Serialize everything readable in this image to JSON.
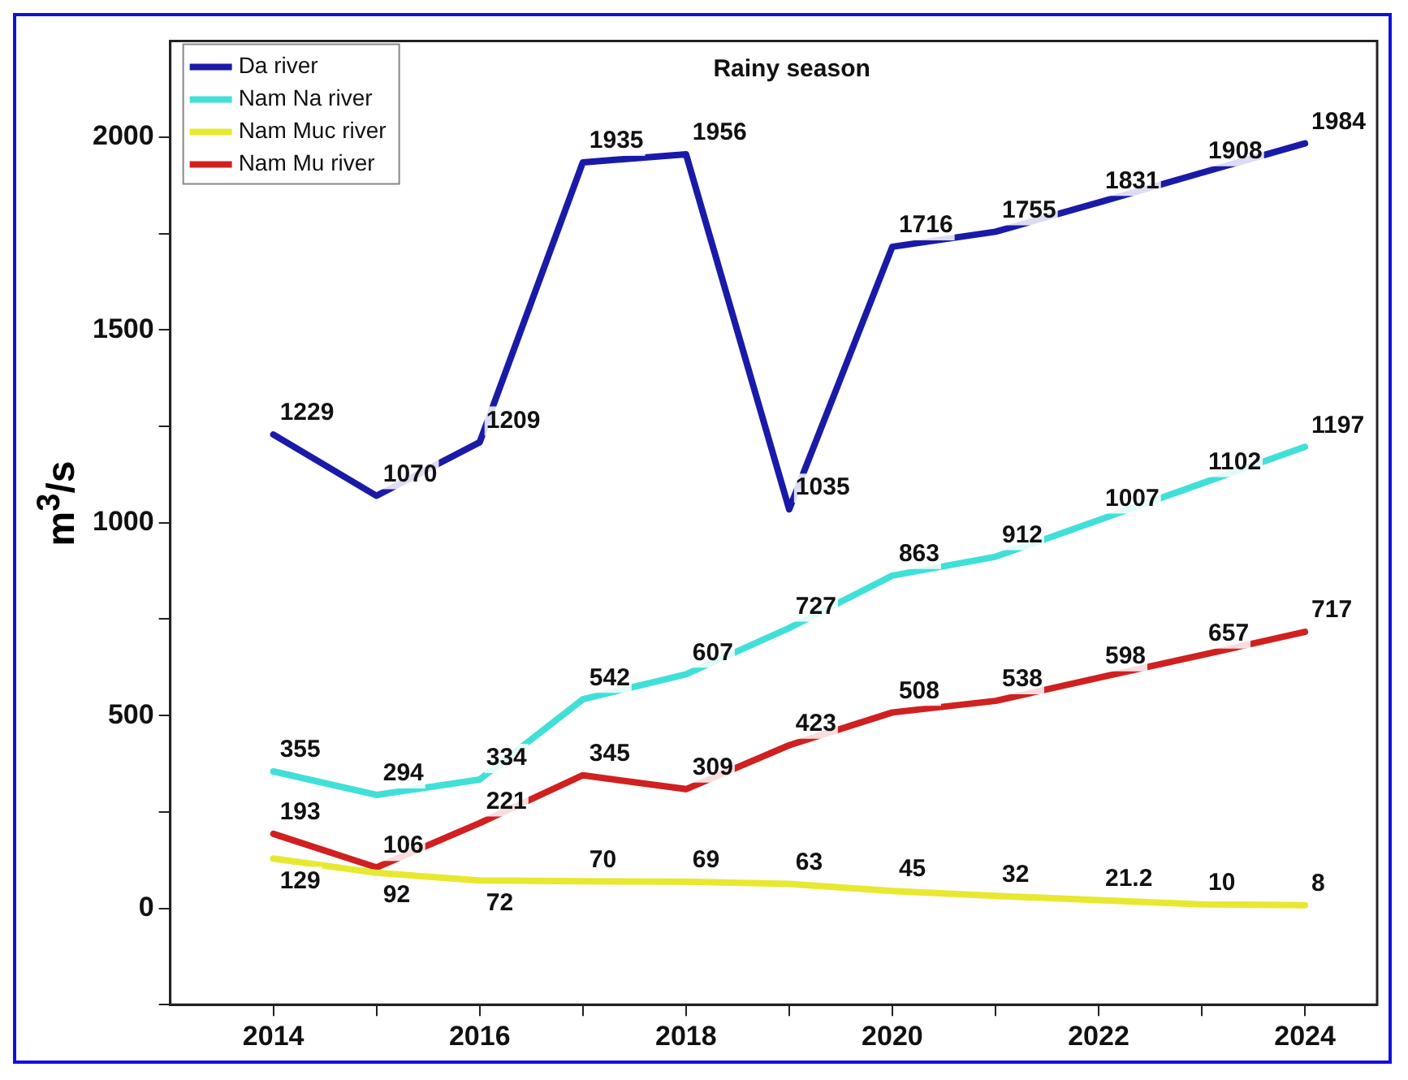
{
  "chart_data": {
    "type": "line",
    "title": "Rainy season",
    "ylabel": "m$^{3}$/s",
    "x": [
      2014,
      2015,
      2016,
      2017,
      2018,
      2019,
      2020,
      2021,
      2022,
      2023,
      2024
    ],
    "xlim": [
      2013,
      2024.7
    ],
    "xticks": [
      2014,
      {
        "value": 2015,
        "label": null
      },
      2016,
      {
        "value": 2017,
        "label": null
      },
      2018,
      {
        "value": 2019,
        "label": null
      },
      2020,
      {
        "value": 2021,
        "label": null
      },
      2022,
      {
        "value": 2023,
        "label": null
      },
      2024
    ],
    "ylim": [
      -250,
      2250
    ],
    "yticks": [
      {
        "value": -250,
        "label": null
      },
      0,
      {
        "value": 250,
        "label": null
      },
      500,
      {
        "value": 750,
        "label": null
      },
      1000,
      {
        "value": 1250,
        "label": null
      },
      1500,
      {
        "value": 1750,
        "label": null
      },
      2000
    ],
    "legend": "top left",
    "data_labels": true,
    "series": [
      {
        "name": "Da river",
        "color": "#1a1aa8",
        "values": [
          1229,
          1070,
          1209,
          1935,
          1956,
          1035,
          1716,
          1755,
          1831,
          1908,
          1984
        ]
      },
      {
        "name": "Nam Na river",
        "color": "#40e0d8",
        "values": [
          355,
          294,
          334,
          542,
          607,
          727,
          863,
          912,
          1007,
          1102,
          1197
        ]
      },
      {
        "name": "Nam Muc river",
        "color": "#e8e830",
        "values": [
          129,
          92,
          72,
          70,
          69,
          63,
          45,
          32,
          21.2,
          10,
          8
        ]
      },
      {
        "name": "Nam Mu river",
        "color": "#d02020",
        "values": [
          193,
          106,
          221,
          345,
          309,
          423,
          508,
          538,
          598,
          657,
          717
        ]
      }
    ]
  }
}
